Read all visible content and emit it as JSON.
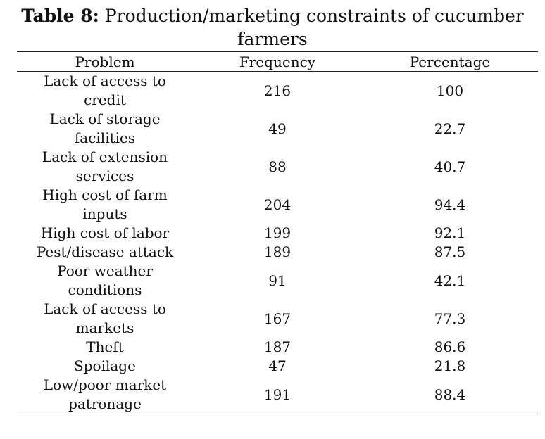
{
  "caption": {
    "lead": "Table 8:",
    "text": " Production/marketing constraints of cucumber farmers"
  },
  "table": {
    "headers": {
      "problem": "Problem",
      "frequency": "Frequency",
      "percentage": "Percentage"
    },
    "rows": [
      {
        "problem": "Lack of access to credit",
        "frequency": "216",
        "percentage": "100"
      },
      {
        "problem": "Lack of storage facilities",
        "frequency": "49",
        "percentage": "22.7"
      },
      {
        "problem": "Lack of extension services",
        "frequency": "88",
        "percentage": "40.7"
      },
      {
        "problem": "High cost of farm inputs",
        "frequency": "204",
        "percentage": "94.4"
      },
      {
        "problem": "High cost of labor",
        "frequency": "199",
        "percentage": "92.1"
      },
      {
        "problem": "Pest/disease attack",
        "frequency": "189",
        "percentage": "87.5"
      },
      {
        "problem": "Poor weather conditions",
        "frequency": "91",
        "percentage": "42.1"
      },
      {
        "problem": "Lack of access to markets",
        "frequency": "167",
        "percentage": "77.3"
      },
      {
        "problem": "Theft",
        "frequency": "187",
        "percentage": "86.6"
      },
      {
        "problem": "Spoilage",
        "frequency": "47",
        "percentage": "21.8"
      },
      {
        "problem": "Low/poor market patronage",
        "frequency": "191",
        "percentage": "88.4"
      }
    ]
  }
}
